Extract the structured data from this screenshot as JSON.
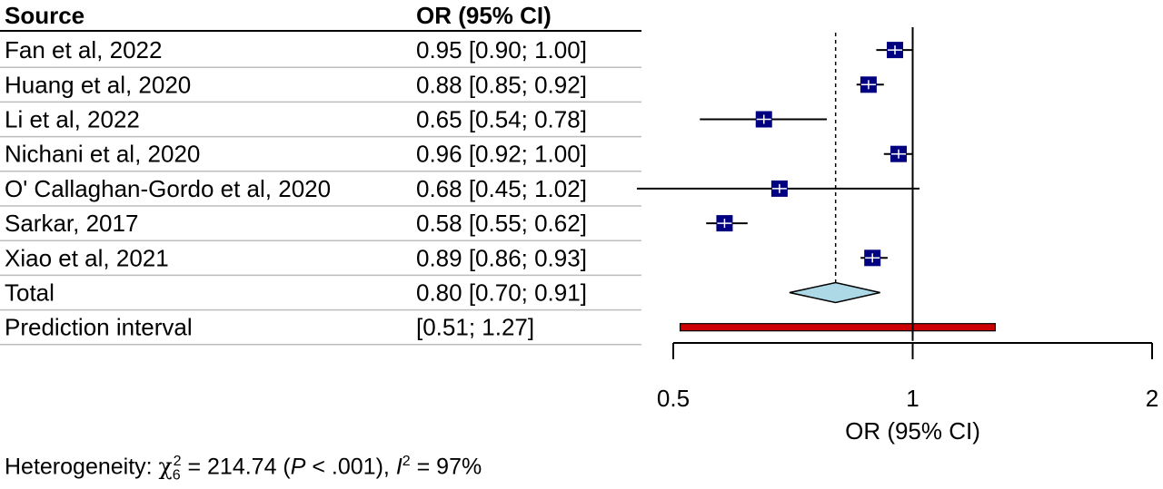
{
  "chart_data": {
    "type": "forest",
    "columns": {
      "source": "Source",
      "estimate": "OR (95% CI)"
    },
    "xlabel": "OR (95% CI)",
    "x_scale": "log",
    "xlim": [
      0.5,
      2
    ],
    "x_ticks": [
      "0.5",
      "1",
      "2"
    ],
    "reference_line": 1,
    "summary_line": 0.8,
    "studies": [
      {
        "name": "Fan et al, 2022",
        "label": "0.95 [0.90; 1.00]",
        "or": 0.95,
        "lower": 0.9,
        "upper": 1.0
      },
      {
        "name": "Huang et al, 2020",
        "label": "0.88 [0.85; 0.92]",
        "or": 0.88,
        "lower": 0.85,
        "upper": 0.92
      },
      {
        "name": "Li et al, 2022",
        "label": "0.65 [0.54; 0.78]",
        "or": 0.65,
        "lower": 0.54,
        "upper": 0.78
      },
      {
        "name": "Nichani et al, 2020",
        "label": "0.96 [0.92; 1.00]",
        "or": 0.96,
        "lower": 0.92,
        "upper": 1.0
      },
      {
        "name": "O' Callaghan-Gordo et al, 2020",
        "label": "0.68 [0.45; 1.02]",
        "or": 0.68,
        "lower": 0.45,
        "upper": 1.02
      },
      {
        "name": "Sarkar, 2017",
        "label": "0.58 [0.55; 0.62]",
        "or": 0.58,
        "lower": 0.55,
        "upper": 0.62
      },
      {
        "name": "Xiao et al, 2021",
        "label": "0.89 [0.86; 0.93]",
        "or": 0.89,
        "lower": 0.86,
        "upper": 0.93
      }
    ],
    "total": {
      "name": "Total",
      "label": "0.80 [0.70; 0.91]",
      "or": 0.8,
      "lower": 0.7,
      "upper": 0.91
    },
    "prediction_interval": {
      "name": "Prediction interval",
      "label": "[0.51; 1.27]",
      "lower": 0.51,
      "upper": 1.27
    },
    "heterogeneity": {
      "prefix": "Heterogeneity: ",
      "chi_symbol": "χ",
      "chi_sup": "2",
      "chi_sub": "6",
      "chi_value": " = 214.74 (",
      "p_symbol": "P",
      "p_value": " < .001), ",
      "i_symbol": "I",
      "i_sup": "2",
      "i_value": " = 97%"
    },
    "colors": {
      "study_box": "#000080",
      "total_diamond": "#add8e6",
      "prediction_bar": "#cc0000",
      "ci_line": "#000000"
    }
  }
}
